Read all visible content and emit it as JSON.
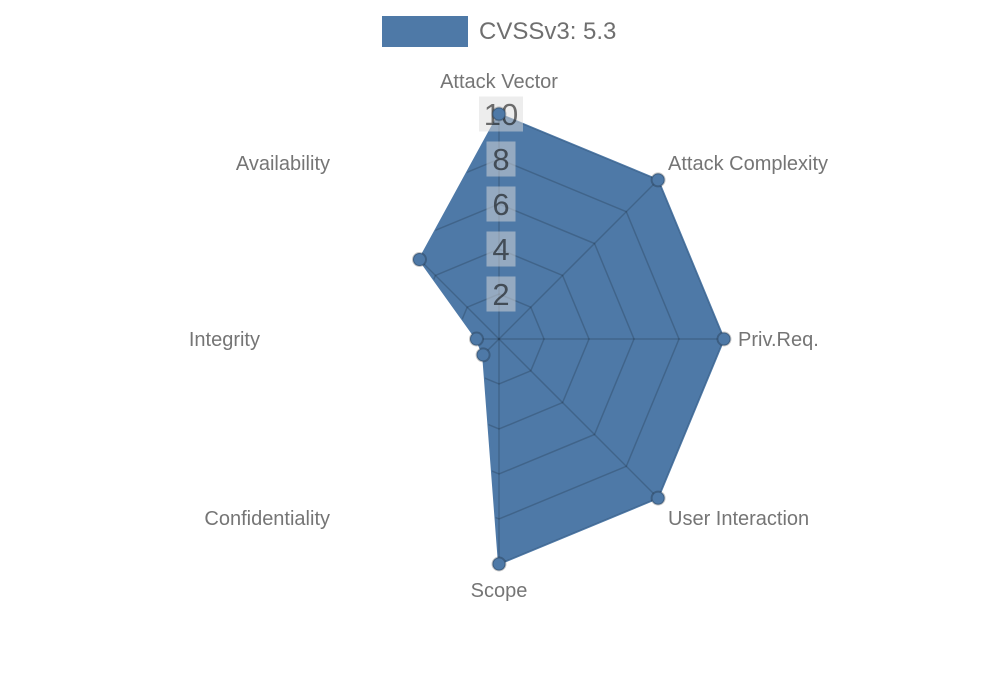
{
  "legend": {
    "label": "CVSSv3: 5.3",
    "swatch_color": "#4e79a7"
  },
  "chart_data": {
    "type": "radar",
    "title": "",
    "categories": [
      "Attack Vector",
      "Attack Complexity",
      "Priv.Req.",
      "User Interaction",
      "Scope",
      "Confidentiality",
      "Integrity",
      "Availability"
    ],
    "series": [
      {
        "name": "CVSSv3: 5.3",
        "values": [
          10,
          10,
          10,
          10,
          10,
          1,
          1,
          5
        ]
      }
    ],
    "rmax": 10,
    "ticks": [
      2,
      4,
      6,
      8,
      10
    ],
    "start_angle_deg": 90,
    "direction": "clockwise",
    "legend_position": "top-center",
    "grid": "polygonal web with radial spokes, visible only within the filled area",
    "colors": {
      "series": "#4e79a7",
      "grid_line": "rgba(0,0,0,0.17)",
      "axis_label": "#757575",
      "tick_text": "rgba(0,0,0,0.55)",
      "tick_backdrop": "rgba(220,220,220,0.5)"
    }
  }
}
